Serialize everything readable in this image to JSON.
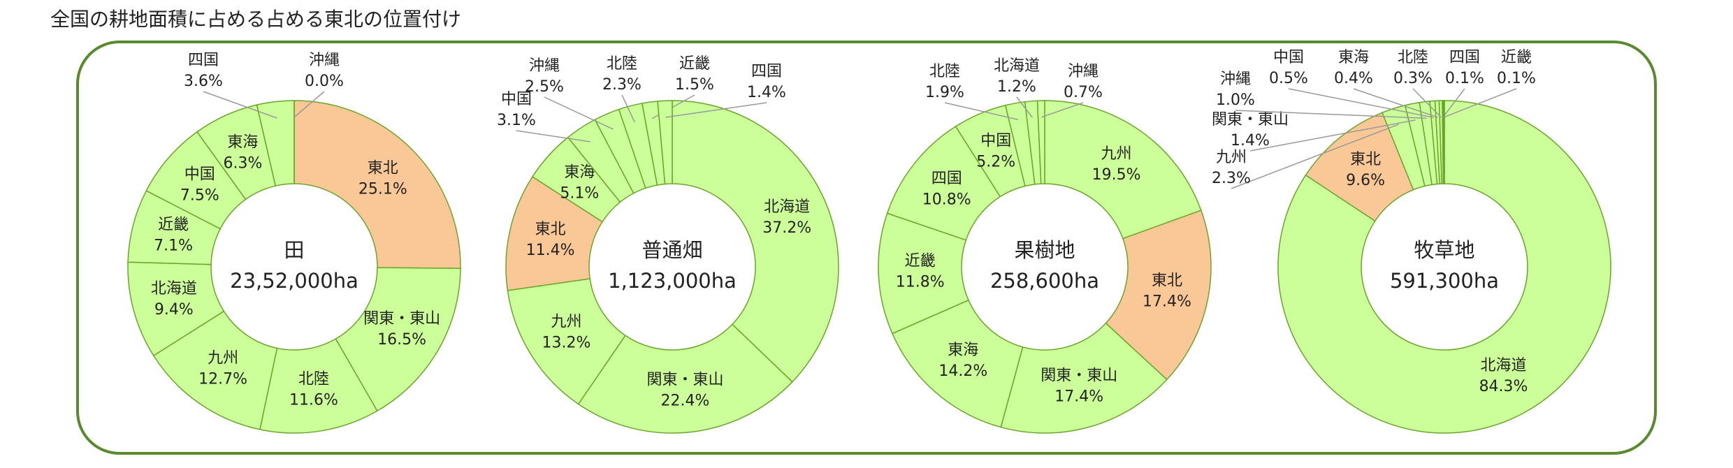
{
  "title": "全国の耕地面積に占める占める東北の位置付け",
  "chart_data": [
    {
      "type": "pie",
      "center_title": "田",
      "center_label": "23,52,000ha",
      "categories": [
        "東北",
        "関東・東山",
        "北陸",
        "九州",
        "北海道",
        "近畿",
        "中国",
        "東海",
        "四国",
        "沖縄"
      ],
      "values": [
        25.1,
        16.5,
        11.6,
        12.7,
        9.4,
        7.1,
        7.5,
        6.3,
        3.6,
        0.0
      ],
      "value_labels": [
        "25.1%",
        "16.5%",
        "11.6%",
        "12.7%",
        "9.4%",
        "7.1%",
        "7.5%",
        "6.3%",
        "3.6%",
        "0.0%"
      ],
      "colors": [
        "#fac896",
        "#ccff99",
        "#ccff99",
        "#ccff99",
        "#ccff99",
        "#ccff99",
        "#ccff99",
        "#ccff99",
        "#ccff99",
        "#ccff99"
      ]
    },
    {
      "type": "pie",
      "center_title": "普通畑",
      "center_label": "1,123,000ha",
      "categories": [
        "北海道",
        "関東・東山",
        "九州",
        "東北",
        "東海",
        "中国",
        "沖縄",
        "北陸",
        "近畿",
        "四国"
      ],
      "values": [
        37.2,
        22.4,
        13.2,
        11.4,
        5.1,
        3.1,
        2.5,
        2.3,
        1.5,
        1.4
      ],
      "value_labels": [
        "37.2%",
        "22.4%",
        "13.2%",
        "11.4%",
        "5.1%",
        "3.1%",
        "2.5%",
        "2.3%",
        "1.5%",
        "1.4%"
      ],
      "colors": [
        "#ccff99",
        "#ccff99",
        "#ccff99",
        "#fac896",
        "#ccff99",
        "#ccff99",
        "#ccff99",
        "#ccff99",
        "#ccff99",
        "#ccff99"
      ]
    },
    {
      "type": "pie",
      "center_title": "果樹地",
      "center_label": "258,600ha",
      "categories": [
        "九州",
        "東北",
        "関東・東山",
        "東海",
        "近畿",
        "四国",
        "中国",
        "北陸",
        "北海道",
        "沖縄"
      ],
      "values": [
        19.5,
        17.4,
        17.4,
        14.2,
        11.8,
        10.8,
        5.2,
        1.9,
        1.2,
        0.7
      ],
      "value_labels": [
        "19.5%",
        "17.4%",
        "17.4%",
        "14.2%",
        "11.8%",
        "10.8%",
        "5.2%",
        "1.9%",
        "1.2%",
        "0.7%"
      ],
      "colors": [
        "#ccff99",
        "#fac896",
        "#ccff99",
        "#ccff99",
        "#ccff99",
        "#ccff99",
        "#ccff99",
        "#ccff99",
        "#ccff99",
        "#ccff99"
      ]
    },
    {
      "type": "pie",
      "center_title": "牧草地",
      "center_label": "591,300ha",
      "categories": [
        "北海道",
        "東北",
        "九州",
        "関東・東山",
        "沖縄",
        "中国",
        "東海",
        "北陸",
        "四国",
        "近畿"
      ],
      "values": [
        84.3,
        9.6,
        2.3,
        1.4,
        1.0,
        0.5,
        0.4,
        0.3,
        0.1,
        0.1
      ],
      "value_labels": [
        "84.3%",
        "9.6%",
        "2.3%",
        "1.4%",
        "1.0%",
        "0.5%",
        "0.4%",
        "0.3%",
        "0.1%",
        "0.1%"
      ],
      "colors": [
        "#ccff99",
        "#fac896",
        "#ccff99",
        "#ccff99",
        "#ccff99",
        "#ccff99",
        "#ccff99",
        "#ccff99",
        "#ccff99",
        "#ccff99"
      ]
    }
  ]
}
